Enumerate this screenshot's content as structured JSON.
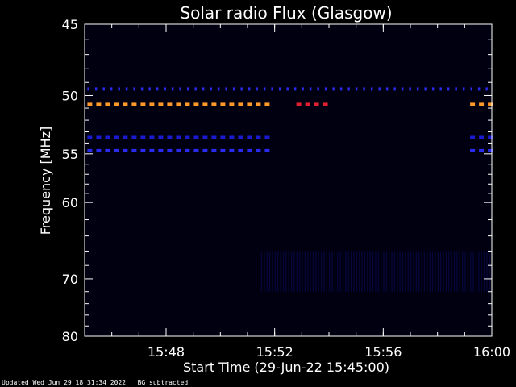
{
  "chart_data": {
    "type": "heatmap",
    "title": "Solar radio Flux (Glasgow)",
    "xlabel": "Start Time (29-Jun-22 15:45:00)",
    "ylabel": "Frequency [MHz]",
    "x_ticks": [
      "15:48",
      "15:52",
      "15:56",
      "16:00"
    ],
    "x_tick_minutes": [
      48,
      52,
      56,
      60
    ],
    "xlim_minutes": [
      45,
      60
    ],
    "y_ticks": [
      45,
      50,
      55,
      60,
      70,
      80
    ],
    "ylim": [
      45,
      80
    ],
    "y_scale": "reciprocal",
    "background_color": "#000010",
    "bands": [
      {
        "freq": 49.5,
        "start": 45.1,
        "end": 60.0,
        "color": "#2a2af0",
        "dash": "dot"
      },
      {
        "freq": 50.7,
        "start": 45.1,
        "end": 51.8,
        "color": "#ff9a2a",
        "dash": "dash"
      },
      {
        "freq": 50.7,
        "start": 52.8,
        "end": 53.9,
        "color": "#e02030",
        "dash": "dash"
      },
      {
        "freq": 50.7,
        "start": 59.2,
        "end": 60.0,
        "color": "#ff9a2a",
        "dash": "dash"
      },
      {
        "freq": 53.5,
        "start": 45.1,
        "end": 51.8,
        "color": "#1a1ad0",
        "dash": "dash"
      },
      {
        "freq": 53.5,
        "start": 59.2,
        "end": 60.0,
        "color": "#1a1ad0",
        "dash": "dash"
      },
      {
        "freq": 54.7,
        "start": 45.1,
        "end": 51.8,
        "color": "#2a2af0",
        "dash": "dash"
      },
      {
        "freq": 54.7,
        "start": 59.2,
        "end": 60.0,
        "color": "#2a2af0",
        "dash": "dash"
      }
    ],
    "faint_region": {
      "freq_min": 66,
      "freq_max": 72,
      "start": 51.5,
      "end": 60.0,
      "color": "#10108a"
    }
  },
  "footer": {
    "updated": "Updated Wed Jun 29 18:31:34 2022   BG subtracted"
  }
}
